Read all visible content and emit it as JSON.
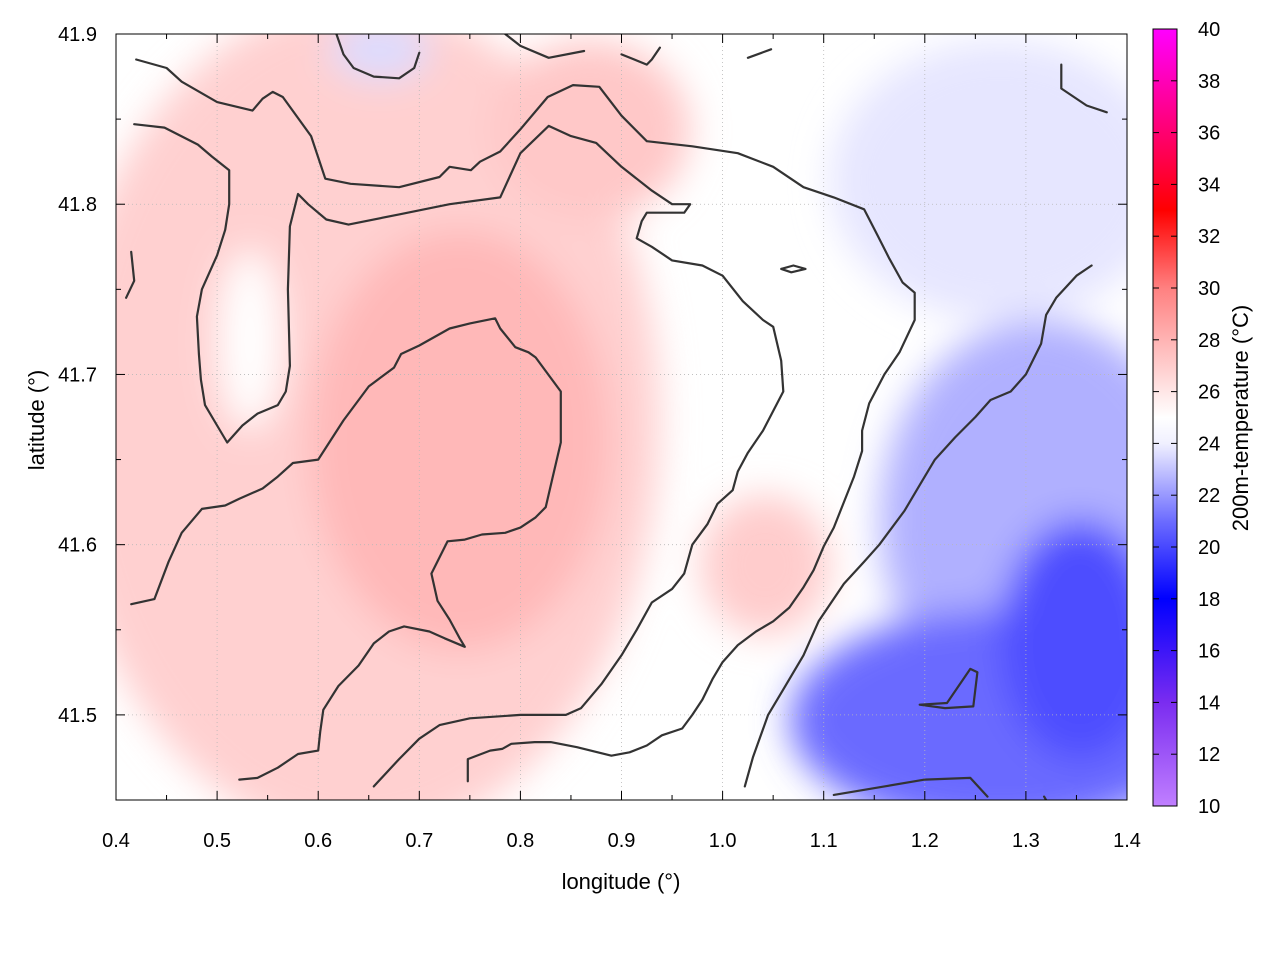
{
  "chart_data": {
    "type": "heatmap",
    "title": "",
    "xlabel": "longitude (°)",
    "ylabel": "latitude (°)",
    "colorbar_label": "200m-temperature (°C)",
    "xlim": [
      0.4,
      1.4
    ],
    "ylim": [
      41.45,
      41.9
    ],
    "zlim": [
      10,
      40
    ],
    "x_ticks": [
      "0.4",
      "0.5",
      "0.6",
      "0.7",
      "0.8",
      "0.9",
      "1.0",
      "1.1",
      "1.2",
      "1.3",
      "1.4"
    ],
    "y_ticks": [
      "41.5",
      "41.6",
      "41.7",
      "41.8",
      "41.9"
    ],
    "colorbar_ticks": [
      "10",
      "12",
      "14",
      "16",
      "18",
      "20",
      "22",
      "24",
      "26",
      "28",
      "30",
      "32",
      "34",
      "36",
      "38",
      "40"
    ],
    "grid": true,
    "colormap": [
      {
        "value": 10,
        "color": "#c07fff"
      },
      {
        "value": 14,
        "color": "#7a2cf0"
      },
      {
        "value": 18,
        "color": "#0000ff"
      },
      {
        "value": 21,
        "color": "#6c6cff"
      },
      {
        "value": 24,
        "color": "#f0f0ff"
      },
      {
        "value": 25,
        "color": "#ffffff"
      },
      {
        "value": 26,
        "color": "#ffe6e6"
      },
      {
        "value": 30,
        "color": "#ff8080"
      },
      {
        "value": 33,
        "color": "#ff0000"
      },
      {
        "value": 35,
        "color": "#ff004c"
      },
      {
        "value": 40,
        "color": "#ff00ff"
      }
    ],
    "contour_levels": [
      24,
      26
    ],
    "contours": [
      [
        [
          0.42,
          41.885
        ],
        [
          0.45,
          41.88
        ],
        [
          0.465,
          41.872
        ],
        [
          0.5,
          41.86
        ],
        [
          0.535,
          41.855
        ],
        [
          0.545,
          41.862
        ],
        [
          0.555,
          41.866
        ],
        [
          0.565,
          41.863
        ],
        [
          0.593,
          41.84
        ],
        [
          0.607,
          41.815
        ],
        [
          0.632,
          41.812
        ],
        [
          0.68,
          41.81
        ],
        [
          0.72,
          41.816
        ],
        [
          0.73,
          41.822
        ],
        [
          0.751,
          41.82
        ],
        [
          0.76,
          41.825
        ],
        [
          0.78,
          41.831
        ],
        [
          0.8,
          41.844
        ],
        [
          0.827,
          41.863
        ],
        [
          0.852,
          41.87
        ],
        [
          0.878,
          41.869
        ],
        [
          0.9,
          41.852
        ],
        [
          0.925,
          41.837
        ],
        [
          0.97,
          41.834
        ],
        [
          1.015,
          41.83
        ],
        [
          1.05,
          41.822
        ],
        [
          1.08,
          41.81
        ],
        [
          1.11,
          41.804
        ],
        [
          1.14,
          41.797
        ],
        [
          1.153,
          41.782
        ],
        [
          1.165,
          41.768
        ],
        [
          1.178,
          41.754
        ],
        [
          1.19,
          41.748
        ],
        [
          1.19,
          41.732
        ],
        [
          1.175,
          41.713
        ],
        [
          1.16,
          41.7
        ],
        [
          1.145,
          41.683
        ],
        [
          1.138,
          41.667
        ],
        [
          1.138,
          41.655
        ],
        [
          1.13,
          41.64
        ],
        [
          1.12,
          41.625
        ],
        [
          1.11,
          41.61
        ],
        [
          1.1,
          41.599
        ],
        [
          1.09,
          41.585
        ],
        [
          1.08,
          41.575
        ],
        [
          1.066,
          41.563
        ],
        [
          1.05,
          41.555
        ],
        [
          1.033,
          41.549
        ],
        [
          1.015,
          41.541
        ],
        [
          1.0,
          41.531
        ],
        [
          0.99,
          41.521
        ],
        [
          0.98,
          41.509
        ],
        [
          0.97,
          41.5
        ],
        [
          0.96,
          41.492
        ],
        [
          0.94,
          41.488
        ],
        [
          0.925,
          41.482
        ],
        [
          0.908,
          41.478
        ],
        [
          0.89,
          41.476
        ],
        [
          0.856,
          41.481
        ],
        [
          0.83,
          41.484
        ],
        [
          0.814,
          41.484
        ],
        [
          0.791,
          41.483
        ],
        [
          0.782,
          41.48
        ],
        [
          0.77,
          41.479
        ],
        [
          0.748,
          41.474
        ],
        [
          0.748,
          41.461
        ]
      ],
      [
        [
          0.418,
          41.847
        ],
        [
          0.448,
          41.845
        ],
        [
          0.481,
          41.835
        ],
        [
          0.495,
          41.828
        ],
        [
          0.512,
          41.82
        ],
        [
          0.512,
          41.8
        ],
        [
          0.508,
          41.785
        ],
        [
          0.5,
          41.77
        ],
        [
          0.485,
          41.75
        ],
        [
          0.48,
          41.734
        ],
        [
          0.482,
          41.712
        ],
        [
          0.484,
          41.697
        ],
        [
          0.488,
          41.682
        ],
        [
          0.5,
          41.67
        ],
        [
          0.51,
          41.66
        ],
        [
          0.525,
          41.67
        ],
        [
          0.54,
          41.677
        ],
        [
          0.56,
          41.682
        ],
        [
          0.568,
          41.69
        ],
        [
          0.572,
          41.705
        ],
        [
          0.57,
          41.75
        ],
        [
          0.572,
          41.787
        ],
        [
          0.58,
          41.806
        ],
        [
          0.59,
          41.8
        ],
        [
          0.608,
          41.791
        ],
        [
          0.63,
          41.788
        ],
        [
          0.68,
          41.794
        ],
        [
          0.73,
          41.8
        ],
        [
          0.78,
          41.804
        ],
        [
          0.8,
          41.83
        ],
        [
          0.828,
          41.846
        ],
        [
          0.85,
          41.84
        ],
        [
          0.875,
          41.836
        ],
        [
          0.9,
          41.822
        ],
        [
          0.93,
          41.808
        ],
        [
          0.95,
          41.8
        ],
        [
          0.968,
          41.8
        ],
        [
          0.962,
          41.795
        ],
        [
          0.925,
          41.795
        ],
        [
          0.92,
          41.79
        ],
        [
          0.915,
          41.78
        ],
        [
          0.93,
          41.775
        ],
        [
          0.95,
          41.767
        ],
        [
          0.98,
          41.764
        ],
        [
          1.0,
          41.758
        ],
        [
          1.02,
          41.743
        ],
        [
          1.04,
          41.732
        ],
        [
          1.05,
          41.728
        ],
        [
          1.058,
          41.708
        ],
        [
          1.06,
          41.69
        ],
        [
          1.04,
          41.667
        ],
        [
          1.025,
          41.654
        ],
        [
          1.015,
          41.643
        ],
        [
          1.01,
          41.632
        ],
        [
          0.995,
          41.624
        ],
        [
          0.985,
          41.612
        ],
        [
          0.97,
          41.6
        ],
        [
          0.962,
          41.583
        ],
        [
          0.95,
          41.574
        ],
        [
          0.93,
          41.566
        ],
        [
          0.915,
          41.55
        ],
        [
          0.9,
          41.535
        ],
        [
          0.88,
          41.518
        ],
        [
          0.86,
          41.504
        ],
        [
          0.845,
          41.5
        ],
        [
          0.8,
          41.5
        ],
        [
          0.75,
          41.498
        ],
        [
          0.72,
          41.494
        ],
        [
          0.7,
          41.486
        ],
        [
          0.68,
          41.474
        ],
        [
          0.655,
          41.458
        ]
      ],
      [
        [
          0.415,
          41.565
        ],
        [
          0.438,
          41.568
        ],
        [
          0.452,
          41.59
        ],
        [
          0.465,
          41.607
        ],
        [
          0.485,
          41.621
        ],
        [
          0.508,
          41.623
        ],
        [
          0.522,
          41.627
        ],
        [
          0.545,
          41.633
        ],
        [
          0.56,
          41.64
        ],
        [
          0.575,
          41.648
        ],
        [
          0.6,
          41.65
        ],
        [
          0.625,
          41.673
        ],
        [
          0.65,
          41.693
        ],
        [
          0.675,
          41.704
        ],
        [
          0.682,
          41.712
        ],
        [
          0.7,
          41.717
        ],
        [
          0.73,
          41.727
        ],
        [
          0.75,
          41.73
        ],
        [
          0.775,
          41.733
        ],
        [
          0.78,
          41.727
        ],
        [
          0.795,
          41.716
        ],
        [
          0.808,
          41.713
        ],
        [
          0.815,
          41.71
        ],
        [
          0.84,
          41.69
        ],
        [
          0.84,
          41.675
        ],
        [
          0.84,
          41.66
        ],
        [
          0.832,
          41.64
        ],
        [
          0.825,
          41.622
        ],
        [
          0.815,
          41.616
        ],
        [
          0.8,
          41.61
        ],
        [
          0.785,
          41.607
        ],
        [
          0.762,
          41.606
        ],
        [
          0.745,
          41.603
        ],
        [
          0.728,
          41.602
        ],
        [
          0.712,
          41.583
        ],
        [
          0.718,
          41.567
        ],
        [
          0.73,
          41.556
        ],
        [
          0.74,
          41.545
        ],
        [
          0.745,
          41.54
        ],
        [
          0.725,
          41.545
        ],
        [
          0.71,
          41.549
        ],
        [
          0.685,
          41.552
        ],
        [
          0.67,
          41.549
        ],
        [
          0.655,
          41.542
        ],
        [
          0.64,
          41.529
        ],
        [
          0.62,
          41.517
        ],
        [
          0.605,
          41.503
        ],
        [
          0.602,
          41.49
        ],
        [
          0.6,
          41.479
        ],
        [
          0.58,
          41.477
        ],
        [
          0.56,
          41.469
        ],
        [
          0.54,
          41.463
        ],
        [
          0.522,
          41.462
        ]
      ],
      [
        [
          0.618,
          41.9
        ],
        [
          0.625,
          41.888
        ],
        [
          0.635,
          41.88
        ],
        [
          0.655,
          41.875
        ],
        [
          0.68,
          41.874
        ],
        [
          0.695,
          41.88
        ],
        [
          0.7,
          41.889
        ]
      ],
      [
        [
          0.785,
          41.9
        ],
        [
          0.8,
          41.893
        ],
        [
          0.828,
          41.886
        ],
        [
          0.863,
          41.89
        ]
      ],
      [
        [
          0.9,
          41.888
        ],
        [
          0.925,
          41.882
        ],
        [
          0.93,
          41.885
        ],
        [
          0.938,
          41.892
        ]
      ],
      [
        [
          1.025,
          41.886
        ],
        [
          1.048,
          41.891
        ]
      ],
      [
        [
          1.335,
          41.882
        ],
        [
          1.335,
          41.868
        ],
        [
          1.36,
          41.858
        ],
        [
          1.38,
          41.854
        ]
      ],
      [
        [
          0.415,
          41.772
        ],
        [
          0.418,
          41.755
        ],
        [
          0.41,
          41.745
        ]
      ],
      [
        [
          1.058,
          41.762
        ],
        [
          1.07,
          41.764
        ],
        [
          1.082,
          41.762
        ],
        [
          1.068,
          41.76
        ],
        [
          1.058,
          41.762
        ]
      ],
      [
        [
          1.022,
          41.458
        ],
        [
          1.03,
          41.475
        ],
        [
          1.045,
          41.5
        ],
        [
          1.06,
          41.515
        ],
        [
          1.08,
          41.535
        ],
        [
          1.095,
          41.555
        ],
        [
          1.12,
          41.577
        ],
        [
          1.14,
          41.59
        ],
        [
          1.155,
          41.6
        ],
        [
          1.18,
          41.62
        ],
        [
          1.195,
          41.635
        ],
        [
          1.21,
          41.65
        ],
        [
          1.23,
          41.663
        ],
        [
          1.25,
          41.675
        ],
        [
          1.265,
          41.685
        ],
        [
          1.285,
          41.69
        ],
        [
          1.3,
          41.7
        ],
        [
          1.315,
          41.718
        ],
        [
          1.32,
          41.735
        ],
        [
          1.33,
          41.745
        ],
        [
          1.35,
          41.758
        ],
        [
          1.365,
          41.764
        ]
      ],
      [
        [
          1.195,
          41.506
        ],
        [
          1.222,
          41.507
        ],
        [
          1.245,
          41.527
        ],
        [
          1.252,
          41.525
        ],
        [
          1.248,
          41.505
        ],
        [
          1.22,
          41.504
        ],
        [
          1.195,
          41.506
        ]
      ],
      [
        [
          1.11,
          41.453
        ],
        [
          1.16,
          41.458
        ],
        [
          1.2,
          41.462
        ],
        [
          1.245,
          41.463
        ],
        [
          1.262,
          41.452
        ]
      ],
      [
        [
          1.318,
          41.452
        ],
        [
          1.322,
          41.448
        ]
      ]
    ],
    "note_data_only": false
  }
}
